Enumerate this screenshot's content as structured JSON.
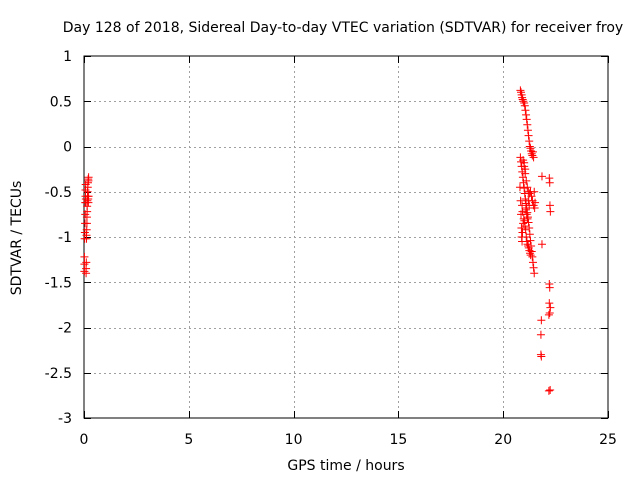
{
  "chart_data": {
    "type": "scatter",
    "title": "Day 128 of 2018, Sidereal Day-to-day VTEC variation (SDTVAR) for receiver froy",
    "xlabel": "GPS time / hours",
    "ylabel": "SDTVAR / TECUs",
    "xlim": [
      0,
      25
    ],
    "ylim": [
      -3,
      1
    ],
    "xticks": [
      0,
      5,
      10,
      15,
      20,
      25
    ],
    "yticks": [
      -3,
      -2.5,
      -2,
      -1.5,
      -1,
      -0.5,
      0,
      0.5,
      1
    ],
    "xtick_labels": [
      "0",
      "5",
      "10",
      "15",
      "20",
      "25"
    ],
    "ytick_labels": [
      "-3",
      "-2.5",
      "-2",
      "-1.5",
      "-1",
      "-0.5",
      "0",
      "0.5",
      "1"
    ],
    "grid": true,
    "marker": "+",
    "marker_color": "#ff0000",
    "series": [
      {
        "name": "SDTVAR",
        "points": [
          [
            0.02,
            -1.38
          ],
          [
            0.02,
            -1.3
          ],
          [
            0.02,
            -1.22
          ],
          [
            0.03,
            -1.02
          ],
          [
            0.04,
            -0.95
          ],
          [
            0.05,
            -0.85
          ],
          [
            0.06,
            -0.75
          ],
          [
            0.06,
            -0.62
          ],
          [
            0.07,
            -0.55
          ],
          [
            0.07,
            -0.48
          ],
          [
            0.08,
            -0.42
          ],
          [
            0.1,
            -1.4
          ],
          [
            0.1,
            -1.35
          ],
          [
            0.11,
            -1.28
          ],
          [
            0.12,
            -1.02
          ],
          [
            0.12,
            -0.98
          ],
          [
            0.13,
            -0.92
          ],
          [
            0.14,
            -0.85
          ],
          [
            0.14,
            -0.78
          ],
          [
            0.15,
            -0.72
          ],
          [
            0.15,
            -0.66
          ],
          [
            0.16,
            -0.6
          ],
          [
            0.17,
            -0.55
          ],
          [
            0.17,
            -0.5
          ],
          [
            0.18,
            -0.45
          ],
          [
            0.19,
            -0.4
          ],
          [
            0.2,
            -0.36
          ],
          [
            0.21,
            -0.38
          ],
          [
            0.22,
            -0.34
          ],
          [
            0.2,
            -0.58
          ],
          [
            0.21,
            -0.62
          ],
          [
            0.22,
            -0.55
          ],
          [
            0.08,
            -0.62
          ],
          [
            0.09,
            -0.58
          ],
          [
            20.82,
            0.62
          ],
          [
            20.85,
            0.6
          ],
          [
            20.88,
            0.57
          ],
          [
            20.9,
            0.54
          ],
          [
            20.93,
            0.52
          ],
          [
            20.96,
            0.5
          ],
          [
            21.0,
            0.48
          ],
          [
            21.03,
            0.45
          ],
          [
            21.06,
            0.4
          ],
          [
            21.09,
            0.35
          ],
          [
            21.12,
            0.3
          ],
          [
            21.15,
            0.24
          ],
          [
            21.18,
            0.18
          ],
          [
            21.21,
            0.12
          ],
          [
            21.24,
            0.06
          ],
          [
            21.27,
            0.0
          ],
          [
            21.3,
            -0.02
          ],
          [
            21.33,
            -0.05
          ],
          [
            21.36,
            -0.08
          ],
          [
            21.39,
            -0.1
          ],
          [
            21.42,
            -0.06
          ],
          [
            21.45,
            -0.12
          ],
          [
            20.82,
            -0.12
          ],
          [
            20.85,
            -0.17
          ],
          [
            20.88,
            -0.22
          ],
          [
            20.91,
            -0.28
          ],
          [
            20.94,
            -0.34
          ],
          [
            20.97,
            -0.4
          ],
          [
            21.0,
            -0.46
          ],
          [
            21.03,
            -0.52
          ],
          [
            21.06,
            -0.58
          ],
          [
            21.09,
            -0.63
          ],
          [
            21.12,
            -0.68
          ],
          [
            21.15,
            -0.73
          ],
          [
            21.18,
            -0.78
          ],
          [
            21.21,
            -0.84
          ],
          [
            21.24,
            -0.9
          ],
          [
            21.27,
            -0.97
          ],
          [
            21.3,
            -1.04
          ],
          [
            21.33,
            -1.1
          ],
          [
            21.36,
            -1.16
          ],
          [
            21.39,
            -1.22
          ],
          [
            21.42,
            -1.28
          ],
          [
            21.45,
            -1.34
          ],
          [
            21.48,
            -1.4
          ],
          [
            20.8,
            -0.45
          ],
          [
            20.83,
            -0.6
          ],
          [
            20.85,
            -0.75
          ],
          [
            20.87,
            -0.9
          ],
          [
            20.88,
            -1.0
          ],
          [
            20.9,
            -1.05
          ],
          [
            20.92,
            -0.95
          ],
          [
            20.95,
            -0.85
          ],
          [
            20.98,
            -0.8
          ],
          [
            21.01,
            -0.82
          ],
          [
            21.04,
            -0.88
          ],
          [
            21.07,
            -0.92
          ],
          [
            21.1,
            -1.0
          ],
          [
            21.13,
            -1.05
          ],
          [
            21.16,
            -1.08
          ],
          [
            21.19,
            -1.1
          ],
          [
            21.22,
            -1.12
          ],
          [
            21.25,
            -1.15
          ],
          [
            21.28,
            -1.18
          ],
          [
            21.31,
            -1.2
          ],
          [
            21.0,
            -0.22
          ],
          [
            21.05,
            -0.3
          ],
          [
            21.1,
            -0.38
          ],
          [
            21.15,
            -0.45
          ],
          [
            21.2,
            -0.5
          ],
          [
            21.25,
            -0.52
          ],
          [
            21.3,
            -0.5
          ],
          [
            21.35,
            -0.55
          ],
          [
            21.4,
            -0.6
          ],
          [
            21.45,
            -0.65
          ],
          [
            21.5,
            -0.68
          ],
          [
            21.48,
            -0.5
          ],
          [
            21.52,
            -0.62
          ],
          [
            20.95,
            -0.15
          ],
          [
            21.0,
            -0.18
          ],
          [
            21.05,
            -0.25
          ],
          [
            20.9,
            -0.65
          ],
          [
            20.92,
            -0.72
          ],
          [
            21.08,
            -0.7
          ],
          [
            21.12,
            -0.75
          ],
          [
            21.16,
            -0.8
          ],
          [
            21.2,
            -0.6
          ],
          [
            21.24,
            -0.65
          ],
          [
            21.85,
            -0.33
          ],
          [
            21.85,
            -1.08
          ],
          [
            21.82,
            -1.92
          ],
          [
            21.8,
            -2.08
          ],
          [
            21.8,
            -2.3
          ],
          [
            21.82,
            -2.32
          ],
          [
            22.2,
            -0.35
          ],
          [
            22.22,
            -0.4
          ],
          [
            22.23,
            -0.65
          ],
          [
            22.25,
            -0.72
          ],
          [
            22.2,
            -1.52
          ],
          [
            22.22,
            -1.56
          ],
          [
            22.2,
            -1.73
          ],
          [
            22.25,
            -1.78
          ],
          [
            22.18,
            -1.86
          ],
          [
            22.22,
            -1.84
          ],
          [
            22.18,
            -2.7
          ],
          [
            22.24,
            -2.69
          ]
        ]
      }
    ]
  }
}
